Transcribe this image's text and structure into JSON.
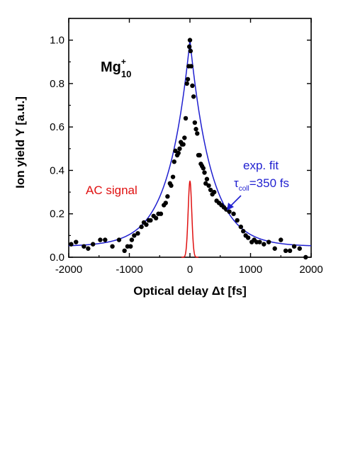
{
  "chart_data": {
    "type": "scatter",
    "title": "",
    "xlabel": "Optical delay Δt [fs]",
    "ylabel": "Ion yield Y [a.u.]",
    "xlim": [
      -2000,
      2000
    ],
    "ylim": [
      0,
      1.1
    ],
    "x_ticks": [
      "-2000",
      "-1000",
      "0",
      "1000",
      "2000"
    ],
    "y_ticks": [
      "0.0",
      "0.2",
      "0.4",
      "0.6",
      "0.8",
      "1.0"
    ],
    "grid": false,
    "legend": "none",
    "colors": {
      "data": "#000000",
      "fit": "#1f1fd0",
      "ac": "#e01010",
      "axis": "#000000"
    },
    "annotations": {
      "species_base": "Mg",
      "species_sup": "+",
      "species_sub": "10",
      "ac_label": "AC signal",
      "fit_line1": "exp. fit",
      "fit_tau": "τ",
      "fit_tau_sub": "coll",
      "fit_value": "=350 fs"
    },
    "fit": {
      "model": "exponential",
      "tau_fs": 350,
      "amplitude": 0.95,
      "baseline": 0.05
    },
    "ac_signal": {
      "peak": 0.35,
      "fwhm_fs": 70
    },
    "series": [
      {
        "values": [
          [
            -1960,
            0.06
          ],
          [
            -1880,
            0.07
          ],
          [
            -1750,
            0.05
          ],
          [
            -1680,
            0.04
          ],
          [
            -1600,
            0.06
          ],
          [
            -1480,
            0.08
          ],
          [
            -1400,
            0.08
          ],
          [
            -1280,
            0.05
          ],
          [
            -1170,
            0.08
          ],
          [
            -1080,
            0.03
          ],
          [
            -1030,
            0.05
          ],
          [
            -980,
            0.05
          ],
          [
            -960,
            0.08
          ],
          [
            -920,
            0.1
          ],
          [
            -860,
            0.11
          ],
          [
            -800,
            0.14
          ],
          [
            -760,
            0.16
          ],
          [
            -720,
            0.15
          ],
          [
            -680,
            0.17
          ],
          [
            -650,
            0.17
          ],
          [
            -600,
            0.19
          ],
          [
            -560,
            0.18
          ],
          [
            -520,
            0.2
          ],
          [
            -480,
            0.2
          ],
          [
            -430,
            0.24
          ],
          [
            -400,
            0.25
          ],
          [
            -370,
            0.28
          ],
          [
            -330,
            0.34
          ],
          [
            -310,
            0.33
          ],
          [
            -280,
            0.37
          ],
          [
            -260,
            0.44
          ],
          [
            -240,
            0.49
          ],
          [
            -210,
            0.47
          ],
          [
            -190,
            0.48
          ],
          [
            -170,
            0.5
          ],
          [
            -150,
            0.53
          ],
          [
            -130,
            0.52
          ],
          [
            -110,
            0.52
          ],
          [
            -90,
            0.55
          ],
          [
            -70,
            0.64
          ],
          [
            -50,
            0.8
          ],
          [
            -35,
            0.82
          ],
          [
            -20,
            0.88
          ],
          [
            -10,
            0.97
          ],
          [
            0,
            1.0
          ],
          [
            10,
            0.95
          ],
          [
            20,
            0.88
          ],
          [
            40,
            0.79
          ],
          [
            60,
            0.74
          ],
          [
            80,
            0.62
          ],
          [
            100,
            0.59
          ],
          [
            120,
            0.57
          ],
          [
            140,
            0.47
          ],
          [
            160,
            0.47
          ],
          [
            180,
            0.43
          ],
          [
            200,
            0.42
          ],
          [
            220,
            0.41
          ],
          [
            240,
            0.39
          ],
          [
            260,
            0.34
          ],
          [
            280,
            0.36
          ],
          [
            310,
            0.33
          ],
          [
            340,
            0.31
          ],
          [
            370,
            0.29
          ],
          [
            400,
            0.3
          ],
          [
            440,
            0.26
          ],
          [
            480,
            0.25
          ],
          [
            520,
            0.24
          ],
          [
            560,
            0.23
          ],
          [
            600,
            0.22
          ],
          [
            650,
            0.21
          ],
          [
            720,
            0.2
          ],
          [
            780,
            0.17
          ],
          [
            840,
            0.14
          ],
          [
            880,
            0.12
          ],
          [
            920,
            0.1
          ],
          [
            960,
            0.09
          ],
          [
            1020,
            0.07
          ],
          [
            1060,
            0.08
          ],
          [
            1100,
            0.07
          ],
          [
            1150,
            0.07
          ],
          [
            1220,
            0.06
          ],
          [
            1300,
            0.07
          ],
          [
            1400,
            0.04
          ],
          [
            1500,
            0.08
          ],
          [
            1580,
            0.03
          ],
          [
            1650,
            0.03
          ],
          [
            1720,
            0.05
          ],
          [
            1810,
            0.04
          ],
          [
            1910,
            0.0
          ]
        ]
      }
    ]
  }
}
